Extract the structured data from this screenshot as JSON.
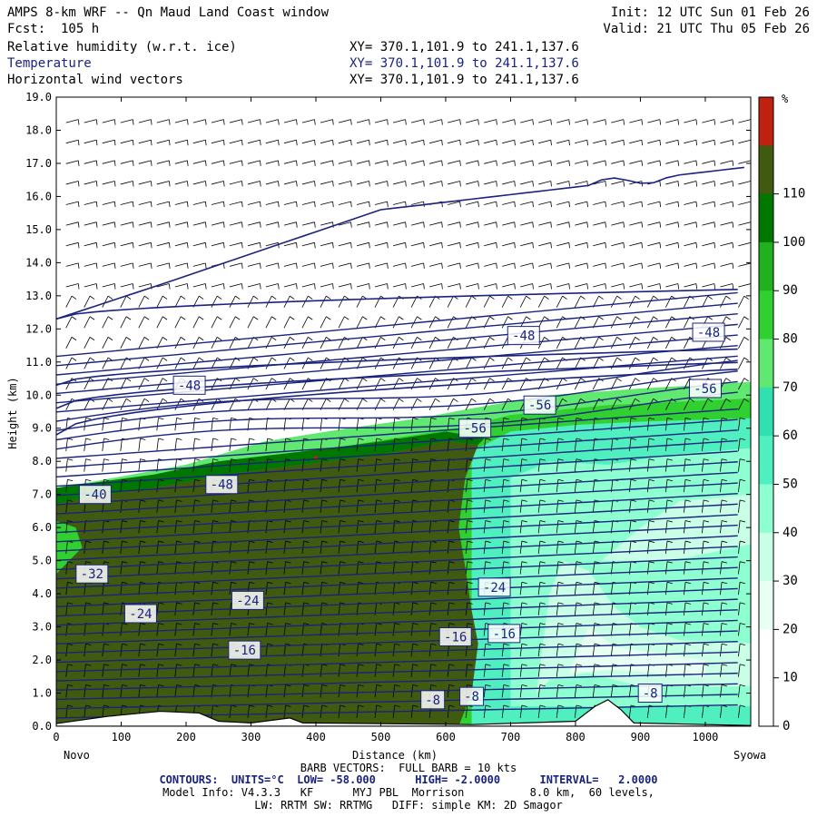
{
  "header": {
    "title": "AMPS 8-km WRF -- Qn Maud Land Coast window",
    "init": "Init: 12 UTC Sun 01 Feb 26",
    "fcst": "Fcst:  105 h",
    "valid": "Valid: 21 UTC Thu 05 Feb 26",
    "fields": [
      {
        "name": "Relative humidity (w.r.t. ice)",
        "xy": "XY= 370.1,101.9 to 241.1,137.6",
        "color": "#000000"
      },
      {
        "name": "Temperature",
        "xy": "XY= 370.1,101.9 to 241.1,137.6",
        "color": "#1a237e"
      },
      {
        "name": "Horizontal wind vectors",
        "xy": "XY= 370.1,101.9 to 241.1,137.6",
        "color": "#000000"
      }
    ]
  },
  "chart_data": {
    "type": "heatmap",
    "xlabel": "Distance (km)",
    "ylabel": "Height (km)",
    "xlim": [
      0,
      1070
    ],
    "ylim": [
      0,
      19
    ],
    "x_ticks": [
      0,
      100,
      200,
      300,
      400,
      500,
      600,
      700,
      800,
      900,
      1000
    ],
    "y_ticks": [
      "0.0",
      "1.0",
      "2.0",
      "3.0",
      "4.0",
      "5.0",
      "6.0",
      "7.0",
      "8.0",
      "9.0",
      "10.0",
      "11.0",
      "12.0",
      "13.0",
      "14.0",
      "15.0",
      "16.0",
      "17.0",
      "18.0",
      "19.0"
    ],
    "x_endpoints": {
      "left": "Novo",
      "right": "Syowa"
    },
    "colorbar": {
      "unit": "%",
      "labels": [
        "0",
        "10",
        "20",
        "30",
        "40",
        "50",
        "60",
        "70",
        "80",
        "90",
        "100",
        "110"
      ],
      "colors": [
        "#ffffff",
        "#e8fff4",
        "#c8ffe6",
        "#8effd0",
        "#50efc0",
        "#30e0b0",
        "#60e870",
        "#30d030",
        "#20b020",
        "#007800",
        "#405a10",
        "#c02010"
      ]
    },
    "temperature_labels": [
      {
        "text": "-48",
        "x": 205,
        "y": 10.3
      },
      {
        "text": "-48",
        "x": 720,
        "y": 11.8
      },
      {
        "text": "-48",
        "x": 1005,
        "y": 11.9
      },
      {
        "text": "-56",
        "x": 745,
        "y": 9.7
      },
      {
        "text": "-56",
        "x": 1000,
        "y": 10.2
      },
      {
        "text": "-56",
        "x": 645,
        "y": 9.0
      },
      {
        "text": "-48",
        "x": 255,
        "y": 7.3
      },
      {
        "text": "-40",
        "x": 60,
        "y": 7.0
      },
      {
        "text": "-32",
        "x": 55,
        "y": 4.6
      },
      {
        "text": "-24",
        "x": 130,
        "y": 3.4
      },
      {
        "text": "-24",
        "x": 295,
        "y": 3.8
      },
      {
        "text": "-24",
        "x": 675,
        "y": 4.2
      },
      {
        "text": "-16",
        "x": 290,
        "y": 2.3
      },
      {
        "text": "-16",
        "x": 615,
        "y": 2.7
      },
      {
        "text": "-16",
        "x": 690,
        "y": 2.8
      },
      {
        "text": "-8",
        "x": 580,
        "y": 0.8
      },
      {
        "text": "-8",
        "x": 640,
        "y": 0.9
      },
      {
        "text": "-8",
        "x": 915,
        "y": 1.0
      }
    ],
    "barb_note": "BARB VECTORS:  FULL BARB = 10 kts"
  },
  "footer": {
    "contours": "CONTOURS:  UNITS=°C  LOW= -58.000      HIGH= -2.0000      INTERVAL=   2.0000",
    "model_info": "Model Info: V4.3.3   KF      MYJ PBL  Morrison          8.0 km,  60 levels,",
    "physics": "LW: RRTM SW: RRTMG   DIFF: simple KM: 2D Smagor"
  }
}
